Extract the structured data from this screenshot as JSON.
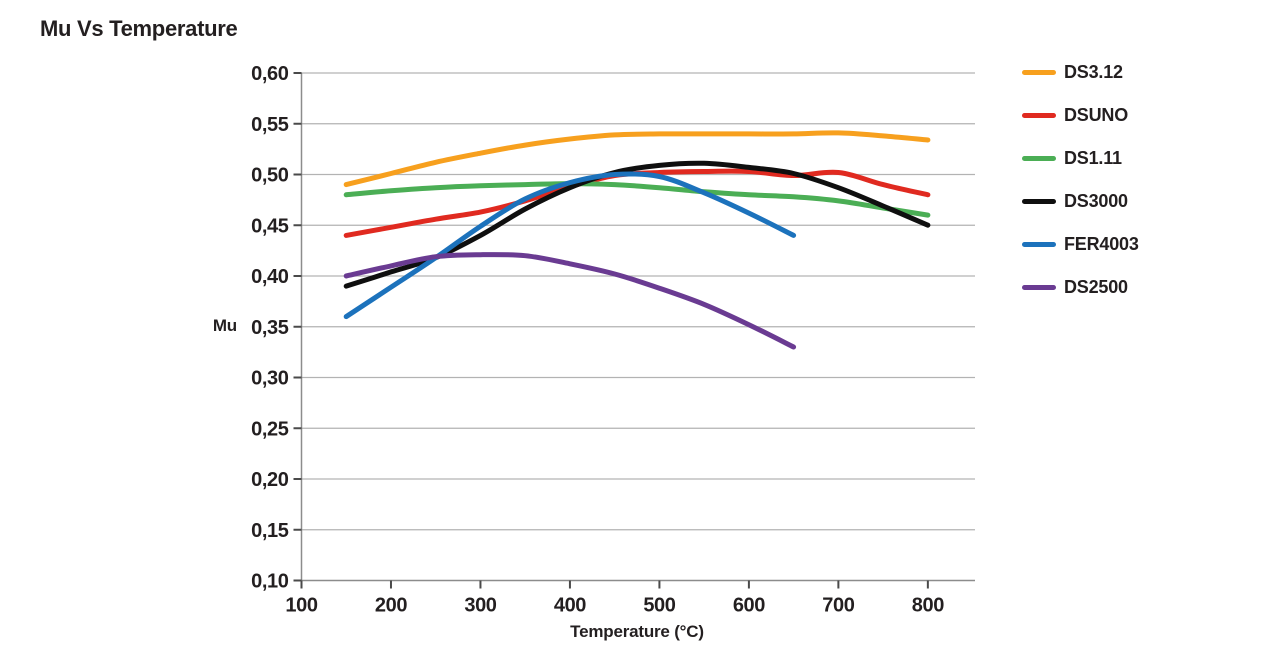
{
  "title": "Mu Vs Temperature",
  "colors": {
    "text": "#231f20",
    "gridline": "#b3b3b3",
    "axis": "#8c8c8c",
    "tick": "#4a4a4a"
  },
  "chart_data": {
    "type": "line",
    "title": "Mu Vs Temperature",
    "xlabel": "Temperature (°C)",
    "ylabel": "Mu",
    "xlim": [
      100,
      853
    ],
    "ylim": [
      0.1,
      0.6
    ],
    "x_ticks": [
      100,
      200,
      300,
      400,
      500,
      600,
      700,
      800
    ],
    "x_tick_labels": [
      "100",
      "200",
      "300",
      "400",
      "500",
      "600",
      "700",
      "800"
    ],
    "y_ticks": [
      0.6,
      0.55,
      0.5,
      0.45,
      0.4,
      0.35,
      0.3,
      0.25,
      0.2,
      0.15,
      0.1
    ],
    "y_tick_labels": [
      "0,60",
      "0,55",
      "0,50",
      "0,45",
      "0,40",
      "0,35",
      "0,30",
      "0,25",
      "0,20",
      "0,15",
      "0,10"
    ],
    "decimal_separator": ",",
    "grid": "horizontal",
    "legend_position": "right",
    "x": [
      150,
      200,
      250,
      300,
      350,
      400,
      450,
      500,
      550,
      600,
      650,
      700,
      750,
      800
    ],
    "series": [
      {
        "name": "DS3.12",
        "color": "#f7a01e",
        "values": [
          0.49,
          0.501,
          0.512,
          0.521,
          0.529,
          0.535,
          0.539,
          0.54,
          0.54,
          0.54,
          0.54,
          0.541,
          0.538,
          0.534
        ]
      },
      {
        "name": "DSUNO",
        "color": "#e02a20",
        "values": [
          0.44,
          0.448,
          0.456,
          0.463,
          0.474,
          0.488,
          0.499,
          0.502,
          0.503,
          0.503,
          0.499,
          0.502,
          0.49,
          0.48
        ]
      },
      {
        "name": "DS1.11",
        "color": "#4bae55",
        "values": [
          0.48,
          0.484,
          0.487,
          0.489,
          0.49,
          0.491,
          0.49,
          0.487,
          0.483,
          0.48,
          0.478,
          0.474,
          0.467,
          0.46
        ]
      },
      {
        "name": "DS3000",
        "color": "#0f0f0f",
        "values": [
          0.39,
          0.404,
          0.418,
          0.44,
          0.466,
          0.487,
          0.502,
          0.509,
          0.511,
          0.507,
          0.501,
          0.487,
          0.469,
          0.45
        ]
      },
      {
        "name": "FER4003",
        "color": "#1c72bc",
        "values": [
          0.36,
          0.389,
          0.418,
          0.449,
          0.476,
          0.492,
          0.5,
          0.498,
          0.482,
          0.462,
          0.44,
          null,
          null,
          null
        ]
      },
      {
        "name": "DS2500",
        "color": "#6a3b92",
        "values": [
          0.4,
          0.41,
          0.419,
          0.421,
          0.42,
          0.412,
          0.402,
          0.388,
          0.372,
          0.352,
          0.33,
          null,
          null,
          null
        ]
      }
    ]
  }
}
